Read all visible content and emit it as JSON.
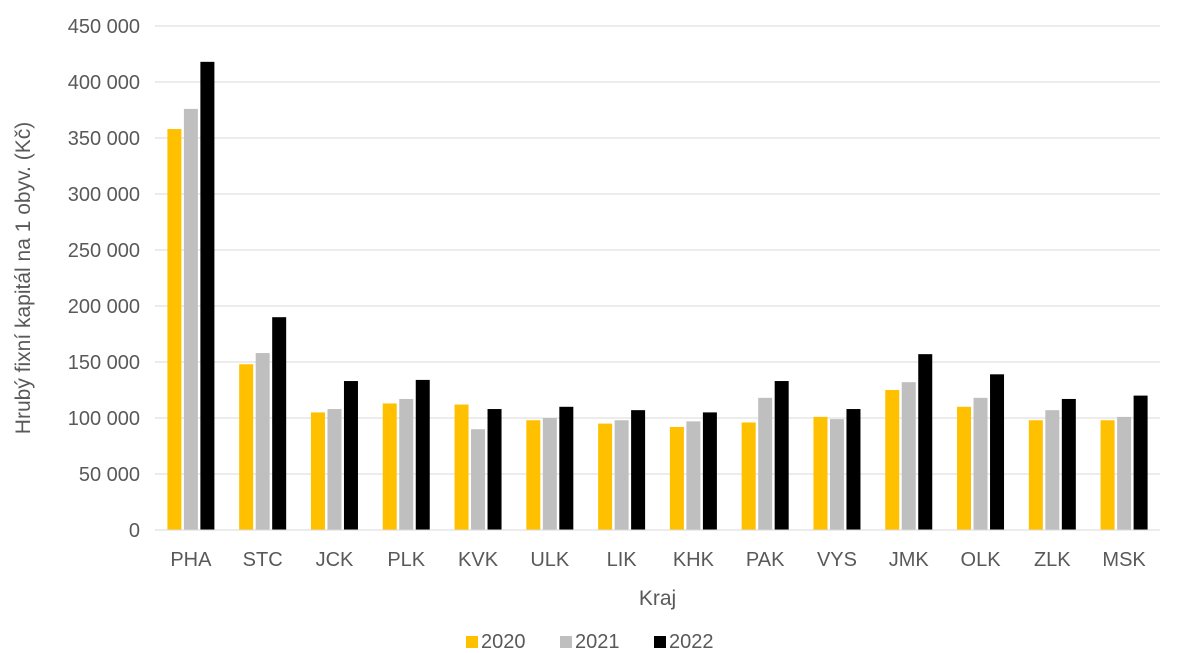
{
  "chart_data": {
    "type": "bar",
    "title": "",
    "xlabel": "Kraj",
    "ylabel": "Hrubý fixní kapitál na 1 obyv. (Kč)",
    "ylim": [
      0,
      450000
    ],
    "yticks": [
      0,
      50000,
      100000,
      150000,
      200000,
      250000,
      300000,
      350000,
      400000,
      450000
    ],
    "ytick_labels": [
      "0",
      "50 000",
      "100 000",
      "150 000",
      "200 000",
      "250 000",
      "300 000",
      "350 000",
      "400 000",
      "450 000"
    ],
    "grid": true,
    "legend_position": "bottom",
    "categories": [
      "PHA",
      "STC",
      "JCK",
      "PLK",
      "KVK",
      "ULK",
      "LIK",
      "KHK",
      "PAK",
      "VYS",
      "JMK",
      "OLK",
      "ZLK",
      "MSK"
    ],
    "series": [
      {
        "name": "2020",
        "color": "#FFC000",
        "values": [
          358000,
          148000,
          105000,
          113000,
          112000,
          98000,
          95000,
          92000,
          96000,
          101000,
          125000,
          110000,
          98000,
          98000
        ]
      },
      {
        "name": "2021",
        "color": "#BFBFBF",
        "values": [
          376000,
          158000,
          108000,
          117000,
          90000,
          100000,
          98000,
          97000,
          118000,
          99000,
          132000,
          118000,
          107000,
          101000
        ]
      },
      {
        "name": "2022",
        "color": "#000000",
        "values": [
          418000,
          190000,
          133000,
          134000,
          108000,
          110000,
          107000,
          105000,
          133000,
          108000,
          157000,
          139000,
          117000,
          120000
        ]
      }
    ]
  }
}
